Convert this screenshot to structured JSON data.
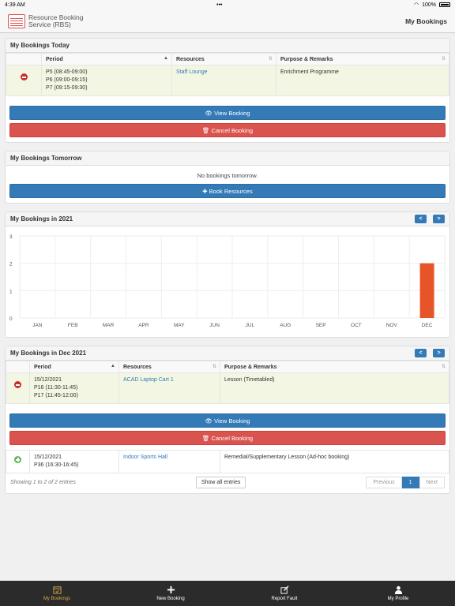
{
  "status": {
    "time": "4:39 AM",
    "battery": "100%"
  },
  "header": {
    "logo_line1": "Resource Booking",
    "logo_line2": "Service (RBS)",
    "title": "My Bookings"
  },
  "today": {
    "title": "My Bookings Today",
    "columns": [
      "Period",
      "Resources",
      "Purpose & Remarks"
    ],
    "row": {
      "periods": [
        "P5 (08:45-09:00)",
        "P6 (09:00-09:15)",
        "P7 (09:15-09:30)"
      ],
      "resource": "Staff Lounge",
      "purpose": "Enrichment Programme"
    },
    "view_label": "View Booking",
    "cancel_label": "Cancel Booking"
  },
  "tomorrow": {
    "title": "My Bookings Tomorrow",
    "empty": "No bookings tomorrow.",
    "book_label": "Book Resources"
  },
  "year": {
    "title": "My Bookings in 2021",
    "prev": "<",
    "next": ">"
  },
  "chart_data": {
    "type": "bar",
    "categories": [
      "JAN",
      "FEB",
      "MAR",
      "APR",
      "MAY",
      "JUN",
      "JUL",
      "AUG",
      "SEP",
      "OCT",
      "NOV",
      "DEC"
    ],
    "values": [
      0,
      0,
      0,
      0,
      0,
      0,
      0,
      0,
      0,
      0,
      0,
      2
    ],
    "ylim": [
      0,
      3
    ],
    "yticks": [
      "0",
      "1",
      "2",
      "3"
    ],
    "color": "#e8542a",
    "grid": true
  },
  "month": {
    "title": "My Bookings in Dec 2021",
    "prev": "<",
    "next": ">",
    "columns": [
      "Period",
      "Resources",
      "Purpose & Remarks"
    ],
    "row1": {
      "date": "15/12/2021",
      "periods": [
        "P16 (11:30-11:45)",
        "P17 (11:45-12:00)"
      ],
      "resource": "ACAD Laptop Cart 1",
      "purpose": "Lesson (Timetabled)"
    },
    "view_label": "View Booking",
    "cancel_label": "Cancel Booking",
    "row2": {
      "date": "15/12/2021",
      "periods": [
        "P36 (16:30-16:45)"
      ],
      "resource": "Indoor Sports Hall",
      "purpose": "Remedial/Supplementary Lesson (Ad-hoc booking)"
    },
    "showing": "Showing 1 to 2 of 2 entries",
    "show_all": "Show all entries",
    "pager": {
      "previous": "Previous",
      "page": "1",
      "next": "Next"
    }
  },
  "tabs": [
    {
      "label": "My Bookings",
      "icon": "calendar-icon"
    },
    {
      "label": "New Booking",
      "icon": "plus-icon"
    },
    {
      "label": "Report Fault",
      "icon": "edit-icon"
    },
    {
      "label": "My Profile",
      "icon": "user-icon"
    }
  ]
}
